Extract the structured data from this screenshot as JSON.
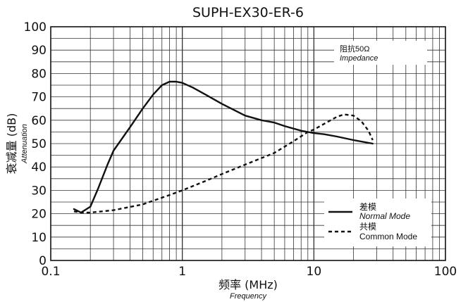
{
  "chart_data": {
    "type": "line",
    "title": "SUPH-EX30-ER-6",
    "xlabel": "频率 (MHz)",
    "xlabel_sub": "Frequency",
    "ylabel": "衰减量 (dB)",
    "ylabel_sub": "Attenuation",
    "x_scale": "log",
    "xlim": [
      0.1,
      100
    ],
    "ylim": [
      0,
      100
    ],
    "x_ticks": [
      "0.1",
      "1",
      "10",
      "100"
    ],
    "y_ticks": [
      "0",
      "5",
      "10",
      "15",
      "20",
      "25",
      "30",
      "35",
      "40",
      "45",
      "50",
      "55",
      "60",
      "65",
      "70",
      "75",
      "80",
      "85",
      "90",
      "95",
      "100"
    ],
    "grid": true,
    "legend_position": "bottom-right",
    "annotation": {
      "line1": "阻抗50Ω",
      "line2": "Impedance"
    },
    "series": [
      {
        "name": "Normal Mode",
        "name_cn": "差模",
        "style": "solid",
        "color": "#111111",
        "x": [
          0.15,
          0.17,
          0.2,
          0.23,
          0.27,
          0.3,
          0.4,
          0.5,
          0.6,
          0.7,
          0.8,
          0.9,
          1.0,
          1.2,
          1.5,
          2,
          3,
          4,
          5,
          6,
          8,
          10,
          12,
          15,
          20,
          25,
          28
        ],
        "y": [
          22,
          20.5,
          23,
          31,
          41,
          47,
          57,
          65,
          71,
          75,
          76.5,
          76.5,
          76,
          74,
          71,
          67,
          62,
          60,
          59,
          57.5,
          55.5,
          54.5,
          54,
          53,
          51.5,
          50.5,
          50
        ]
      },
      {
        "name": "Common Mode",
        "name_cn": "共模",
        "style": "dashed",
        "color": "#111111",
        "x": [
          0.15,
          0.17,
          0.2,
          0.3,
          0.5,
          0.8,
          1.0,
          1.5,
          2,
          3,
          5,
          7,
          9,
          10,
          12,
          15,
          17,
          20,
          23,
          26,
          28
        ],
        "y": [
          21,
          20.5,
          20.5,
          21.5,
          24,
          28,
          30,
          34,
          37,
          41,
          46,
          51,
          55,
          56,
          58.5,
          61.5,
          62.5,
          62,
          59.5,
          55.5,
          51.5
        ]
      }
    ]
  }
}
